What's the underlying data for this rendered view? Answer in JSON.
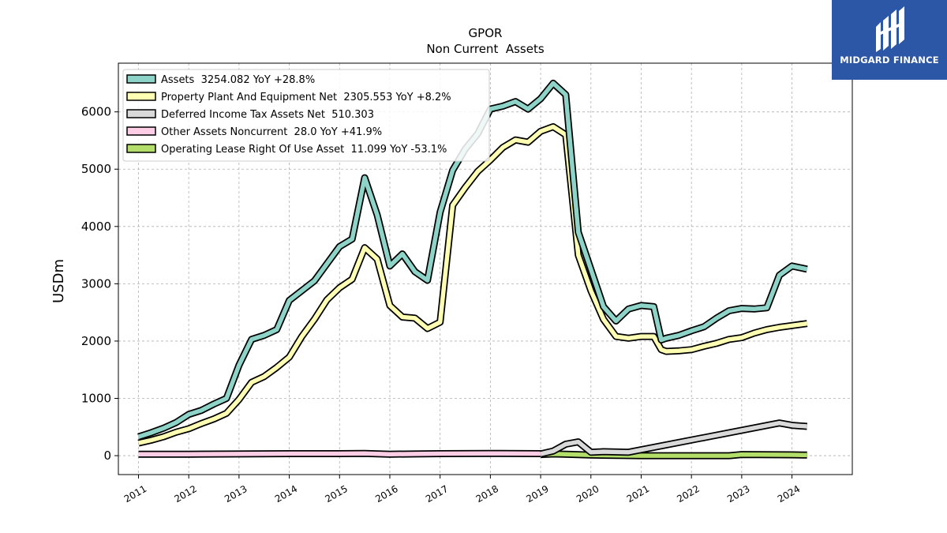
{
  "brand": {
    "name": "MIDGARD FINANCE",
    "color": "#2c56a6"
  },
  "chart_data": {
    "type": "line",
    "title": "GPOR",
    "subtitle": "Non Current  Assets",
    "xlabel": "",
    "ylabel": "USDm",
    "xlim": [
      2010.6,
      2025.2
    ],
    "ylim": [
      -330,
      6850
    ],
    "x_ticks": [
      2011,
      2012,
      2013,
      2014,
      2015,
      2016,
      2017,
      2018,
      2019,
      2020,
      2021,
      2022,
      2023,
      2024
    ],
    "x_tick_labels": [
      "2011",
      "2012",
      "2013",
      "2014",
      "2015",
      "2016",
      "2017",
      "2018",
      "2019",
      "2020",
      "2021",
      "2022",
      "2023",
      "2024"
    ],
    "y_ticks": [
      0,
      1000,
      2000,
      3000,
      4000,
      5000,
      6000
    ],
    "y_tick_labels": [
      "0",
      "1000",
      "2000",
      "3000",
      "4000",
      "5000",
      "6000"
    ],
    "grid": true,
    "legend_position": "top-left",
    "series": [
      {
        "name": "Assets  3254.082 YoY +28.8%",
        "color": "#8dd3c7",
        "x": [
          2011.0,
          2011.25,
          2011.5,
          2011.75,
          2012.0,
          2012.25,
          2012.5,
          2012.75,
          2013.0,
          2013.25,
          2013.5,
          2013.75,
          2014.0,
          2014.25,
          2014.5,
          2014.75,
          2015.0,
          2015.25,
          2015.5,
          2015.75,
          2016.0,
          2016.25,
          2016.5,
          2016.75,
          2017.0,
          2017.25,
          2017.5,
          2017.75,
          2018.0,
          2018.25,
          2018.5,
          2018.75,
          2019.0,
          2019.25,
          2019.5,
          2019.75,
          2020.0,
          2020.25,
          2020.5,
          2020.75,
          2021.0,
          2021.25,
          2021.4,
          2021.5,
          2021.75,
          2022.0,
          2022.25,
          2022.5,
          2022.75,
          2023.0,
          2023.25,
          2023.5,
          2023.75,
          2024.0,
          2024.3
        ],
        "values": [
          330,
          400,
          480,
          580,
          720,
          790,
          900,
          1000,
          1580,
          2030,
          2100,
          2200,
          2710,
          2880,
          3050,
          3350,
          3650,
          3780,
          4850,
          4200,
          3310,
          3520,
          3210,
          3060,
          4250,
          4980,
          5350,
          5620,
          6050,
          6100,
          6180,
          6050,
          6230,
          6500,
          6300,
          3900,
          3250,
          2600,
          2350,
          2560,
          2620,
          2600,
          2020,
          2050,
          2100,
          2180,
          2250,
          2400,
          2530,
          2570,
          2560,
          2580,
          3150,
          3310,
          3254
        ]
      },
      {
        "name": "Property Plant And Equipment Net  2305.553 YoY +8.2%",
        "color": "#ffffb3",
        "x": [
          2011.0,
          2011.25,
          2011.5,
          2011.75,
          2012.0,
          2012.25,
          2012.5,
          2012.75,
          2013.0,
          2013.25,
          2013.5,
          2013.75,
          2014.0,
          2014.25,
          2014.5,
          2014.75,
          2015.0,
          2015.25,
          2015.5,
          2015.75,
          2016.0,
          2016.25,
          2016.5,
          2016.75,
          2017.0,
          2017.25,
          2017.5,
          2017.75,
          2018.0,
          2018.25,
          2018.5,
          2018.75,
          2019.0,
          2019.25,
          2019.5,
          2019.75,
          2020.0,
          2020.25,
          2020.5,
          2020.75,
          2021.0,
          2021.25,
          2021.4,
          2021.5,
          2021.75,
          2022.0,
          2022.25,
          2022.5,
          2022.75,
          2023.0,
          2023.25,
          2023.5,
          2023.75,
          2024.0,
          2024.3
        ],
        "values": [
          220,
          270,
          330,
          410,
          470,
          560,
          640,
          740,
          980,
          1280,
          1380,
          1540,
          1720,
          2080,
          2380,
          2720,
          2930,
          3080,
          3630,
          3430,
          2620,
          2420,
          2400,
          2220,
          2330,
          4370,
          4680,
          4960,
          5160,
          5380,
          5510,
          5470,
          5660,
          5740,
          5600,
          3500,
          2880,
          2380,
          2080,
          2050,
          2080,
          2080,
          1850,
          1820,
          1830,
          1850,
          1910,
          1960,
          2030,
          2060,
          2140,
          2200,
          2240,
          2270,
          2306
        ]
      },
      {
        "name": "Deferred Income Tax Assets Net  510.303",
        "color": "#d9d9d9",
        "x": [
          2019.0,
          2019.25,
          2019.5,
          2019.75,
          2020.0,
          2020.25,
          2020.75,
          2023.75,
          2024.0,
          2024.3
        ],
        "values": [
          30,
          80,
          200,
          240,
          60,
          70,
          60,
          570,
          530,
          510
        ]
      },
      {
        "name": "Other Assets Noncurrent  28.0 YoY +41.9%",
        "color": "#fccde5",
        "x": [
          2011.0,
          2012.0,
          2013.0,
          2014.0,
          2015.0,
          2015.5,
          2016.0,
          2016.5,
          2017.0,
          2018.0,
          2019.0
        ],
        "values": [
          25,
          25,
          30,
          35,
          35,
          40,
          25,
          30,
          35,
          40,
          35
        ]
      },
      {
        "name": "Operating Lease Right Of Use Asset  11.099 YoY -53.1%",
        "color": "#b3de69",
        "x": [
          2019.0,
          2019.25,
          2019.5,
          2020.0,
          2021.0,
          2022.0,
          2022.75,
          2023.0,
          2024.0,
          2024.3
        ],
        "values": [
          20,
          30,
          25,
          10,
          0,
          0,
          0,
          20,
          15,
          11
        ]
      }
    ]
  }
}
